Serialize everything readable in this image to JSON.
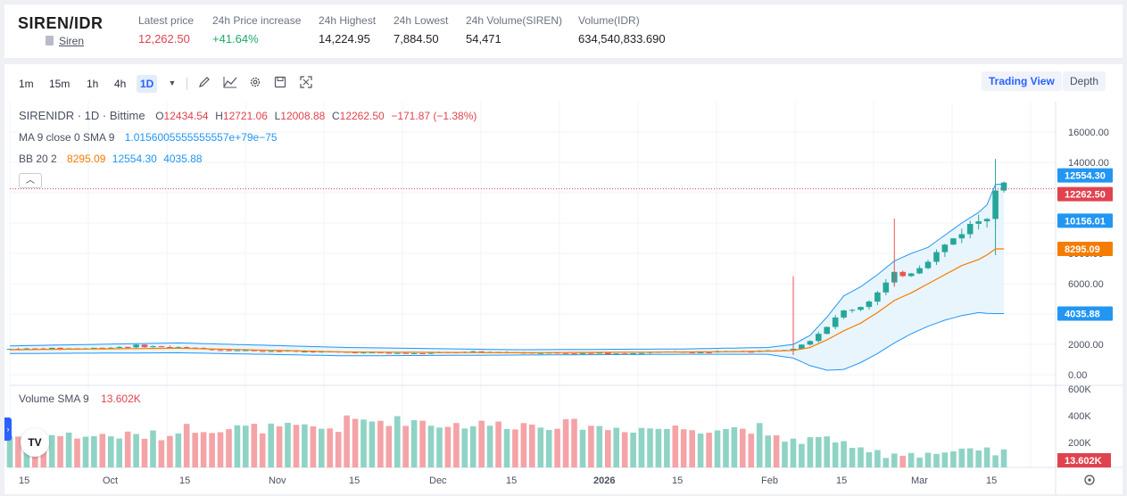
{
  "header": {
    "pair": "SIREN/IDR",
    "sub_link": "Siren",
    "stats": [
      {
        "label": "Latest price",
        "value": "12,262.50",
        "color": "#e0434f"
      },
      {
        "label": "24h Price increase",
        "value": "+41.64%",
        "color": "#20a86b"
      },
      {
        "label": "24h Highest",
        "value": "14,224.95",
        "color": "#1f1f1f"
      },
      {
        "label": "24h Lowest",
        "value": "7,884.50",
        "color": "#1f1f1f"
      },
      {
        "label": "24h Volume(SIREN)",
        "value": "54,471",
        "color": "#1f1f1f"
      },
      {
        "label": "Volume(IDR)",
        "value": "634,540,833.690",
        "color": "#1f1f1f"
      }
    ]
  },
  "toolbar": {
    "timeframes": [
      "1m",
      "15m",
      "1h",
      "4h",
      "1D"
    ],
    "active_timeframe": "1D",
    "tools": [
      "chevron-down-icon",
      "draw-icon",
      "indicator-icon",
      "settings-icon",
      "save-icon",
      "fullscreen-icon"
    ],
    "view_trading": "Trading View",
    "view_depth": "Depth"
  },
  "legend": {
    "symbol": "SIRENIDR · 1D · Bittime",
    "o_label": "O",
    "o_value": "12434.54",
    "h_label": "H",
    "h_value": "12721.06",
    "l_label": "L",
    "l_value": "12008.88",
    "c_label": "C",
    "c_value": "12262.50",
    "change": "−171.87 (−1.38%)",
    "ma_label": "MA 9 close 0 SMA 9",
    "ma_value": "1.0156005555555557e+79e−75",
    "bb_label": "BB 20 2",
    "bb_basis": "8295.09",
    "bb_upper": "12554.30",
    "bb_lower": "4035.88",
    "collapse_icon": "chevron-up-icon"
  },
  "volume_legend": {
    "label": "Volume SMA 9",
    "value": "13.602K"
  },
  "colors": {
    "up": "#26a69a",
    "down": "#ef5350",
    "vol_up": "#8fd3c5",
    "vol_down": "#f4a3a7",
    "bb_band": "#2196f3",
    "bb_basis": "#f57c00",
    "bb_fill": "#e3f2fd",
    "last_price": "#e0434f"
  },
  "chart_data": {
    "type": "candlestick",
    "symbol": "SIRENIDR",
    "interval": "1D",
    "y_ticks": [
      "16000.00",
      "14000.00",
      "12000.00",
      "10000.00",
      "8000.00",
      "6000.00",
      "4000.00",
      "2000.00",
      "0.00"
    ],
    "price_badges": [
      {
        "value": "12554.30",
        "color": "#2196f3"
      },
      {
        "value": "12262.50",
        "color": "#e0434f"
      },
      {
        "value": "10156.01",
        "color": "#2196f3"
      },
      {
        "value": "8295.09",
        "color": "#f57c00"
      },
      {
        "value": "4035.88",
        "color": "#2196f3"
      }
    ],
    "volume_ticks": [
      "600K",
      "400K",
      "200K"
    ],
    "volume_badge": "13.602K",
    "x_labels": [
      "15",
      "Oct",
      "15",
      "Nov",
      "15",
      "Dec",
      "15",
      "2026",
      "15",
      "Feb",
      "15",
      "Mar",
      "15"
    ],
    "price_path": [
      [
        0,
        1700
      ],
      [
        10,
        1750
      ],
      [
        15,
        1900
      ],
      [
        20,
        1800
      ],
      [
        25,
        1650
      ],
      [
        28,
        1600
      ],
      [
        33,
        1550
      ],
      [
        38,
        1500
      ],
      [
        43,
        1450
      ],
      [
        48,
        1400
      ],
      [
        53,
        1480
      ],
      [
        58,
        1500
      ],
      [
        63,
        1450
      ],
      [
        68,
        1400
      ],
      [
        73,
        1420
      ],
      [
        78,
        1500
      ],
      [
        83,
        1480
      ],
      [
        88,
        1550
      ],
      [
        91,
        1600
      ],
      [
        93,
        1800
      ],
      [
        95,
        2300
      ],
      [
        97,
        3200
      ],
      [
        99,
        4200
      ],
      [
        101,
        4500
      ],
      [
        103,
        5400
      ],
      [
        105,
        6500
      ],
      [
        107,
        6800
      ],
      [
        109,
        7600
      ],
      [
        111,
        8500
      ],
      [
        113,
        9500
      ],
      [
        115,
        10200
      ],
      [
        116,
        10800
      ],
      [
        117,
        12434
      ],
      [
        118,
        12262
      ]
    ],
    "bb_upper": [
      [
        0,
        1900
      ],
      [
        20,
        2100
      ],
      [
        40,
        1800
      ],
      [
        60,
        1650
      ],
      [
        80,
        1700
      ],
      [
        90,
        1800
      ],
      [
        93,
        2000
      ],
      [
        95,
        2600
      ],
      [
        97,
        3800
      ],
      [
        99,
        5200
      ],
      [
        101,
        5800
      ],
      [
        103,
        6600
      ],
      [
        105,
        7500
      ],
      [
        107,
        8000
      ],
      [
        109,
        8400
      ],
      [
        111,
        9200
      ],
      [
        113,
        10000
      ],
      [
        115,
        10700
      ],
      [
        116,
        11200
      ],
      [
        117,
        12554
      ],
      [
        118,
        12554
      ]
    ],
    "bb_basis": [
      [
        0,
        1650
      ],
      [
        20,
        1750
      ],
      [
        40,
        1500
      ],
      [
        60,
        1450
      ],
      [
        80,
        1500
      ],
      [
        90,
        1550
      ],
      [
        93,
        1600
      ],
      [
        95,
        1800
      ],
      [
        97,
        2300
      ],
      [
        99,
        2900
      ],
      [
        101,
        3400
      ],
      [
        103,
        4100
      ],
      [
        105,
        4900
      ],
      [
        107,
        5400
      ],
      [
        109,
        6000
      ],
      [
        111,
        6600
      ],
      [
        113,
        7200
      ],
      [
        115,
        7600
      ],
      [
        116,
        7900
      ],
      [
        117,
        8295
      ],
      [
        118,
        8295
      ]
    ],
    "bb_lower": [
      [
        0,
        1400
      ],
      [
        20,
        1450
      ],
      [
        40,
        1250
      ],
      [
        60,
        1300
      ],
      [
        80,
        1350
      ],
      [
        90,
        1350
      ],
      [
        93,
        1100
      ],
      [
        95,
        600
      ],
      [
        97,
        300
      ],
      [
        99,
        350
      ],
      [
        101,
        800
      ],
      [
        103,
        1400
      ],
      [
        105,
        2100
      ],
      [
        107,
        2700
      ],
      [
        109,
        3200
      ],
      [
        111,
        3600
      ],
      [
        113,
        3900
      ],
      [
        115,
        4100
      ],
      [
        116,
        4050
      ],
      [
        117,
        4035
      ],
      [
        118,
        4035
      ]
    ],
    "wicks": [
      {
        "x": 93,
        "high": 6500,
        "low": 1300
      },
      {
        "x": 105,
        "high": 10300,
        "low": 5800
      },
      {
        "x": 117,
        "high": 14224,
        "low": 7884
      }
    ]
  }
}
